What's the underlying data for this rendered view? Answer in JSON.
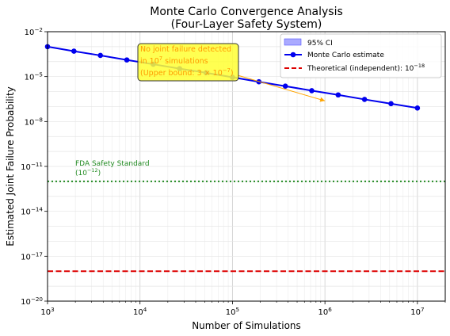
{
  "chart_data": {
    "type": "line",
    "title": "Monte Carlo Convergence Analysis",
    "subtitle": "(Four-Layer Safety System)",
    "xlabel": "Number of Simulations",
    "ylabel": "Estimated Joint Failure Probability",
    "xscale": "log",
    "yscale": "log",
    "xlim": [
      1000,
      20000000
    ],
    "ylim": [
      1e-20,
      0.01
    ],
    "grid": "on (major and minor)",
    "legend_position": "top-right",
    "x_ticks": [
      {
        "value": 1000,
        "base": "10",
        "exp": "3"
      },
      {
        "value": 10000,
        "base": "10",
        "exp": "4"
      },
      {
        "value": 100000,
        "base": "10",
        "exp": "5"
      },
      {
        "value": 1000000,
        "base": "10",
        "exp": "6"
      },
      {
        "value": 10000000,
        "base": "10",
        "exp": "7"
      }
    ],
    "y_ticks": [
      {
        "value": 1e-20,
        "base": "10",
        "exp": "−20"
      },
      {
        "value": 1e-17,
        "base": "10",
        "exp": "−17"
      },
      {
        "value": 1e-14,
        "base": "10",
        "exp": "−14"
      },
      {
        "value": 1e-11,
        "base": "10",
        "exp": "−11"
      },
      {
        "value": 1e-08,
        "base": "10",
        "exp": "−8"
      },
      {
        "value": 1e-05,
        "base": "10",
        "exp": "−5"
      },
      {
        "value": 0.01,
        "base": "10",
        "exp": "−2"
      }
    ],
    "series": [
      {
        "name": "Monte Carlo estimate",
        "color": "#0000ee",
        "marker": "circle",
        "x": [
          1000,
          1930,
          3730,
          7200,
          13900,
          26800,
          51800,
          100000,
          193000,
          373000,
          720000,
          1390000,
          2680000,
          5180000,
          10000000
        ],
        "y": [
          0.001,
          0.0005,
          0.00026,
          0.00013,
          6.7e-05,
          3.4e-05,
          1.8e-05,
          9e-06,
          4.5e-06,
          2.3e-06,
          1.15e-06,
          6e-07,
          3e-07,
          1.55e-07,
          8e-08
        ]
      }
    ],
    "ci_band": {
      "name": "95% CI",
      "color": "#aaaaff"
    },
    "reference_lines": [
      {
        "name": "Theoretical (independent): 10",
        "name_exp": "−18",
        "y": 1e-18,
        "color": "#dd0000",
        "style": "dashed",
        "in_legend": true
      },
      {
        "name": "FDA Safety Standard",
        "y": 1e-12,
        "color": "#228b22",
        "style": "dotted",
        "in_legend": false
      }
    ],
    "annotations": [
      {
        "lines": [
          {
            "pre": "No joint failure detected",
            "exp": "",
            "post": ""
          },
          {
            "pre": "in 10",
            "exp": "7",
            "post": " simulations"
          },
          {
            "pre": "(Upper bound: 3 × 10",
            "exp": "−7",
            "post": ")"
          }
        ],
        "box_color": "#ffff33",
        "text_color": "#ff9900",
        "arrow_target": {
          "x": 1000000,
          "y": 2.4e-07
        }
      },
      {
        "lines": [
          {
            "pre": "FDA Safety Standard",
            "exp": "",
            "post": ""
          },
          {
            "pre": "(10",
            "exp": "−12",
            "post": ")"
          }
        ],
        "text_color": "#228b22"
      }
    ]
  }
}
